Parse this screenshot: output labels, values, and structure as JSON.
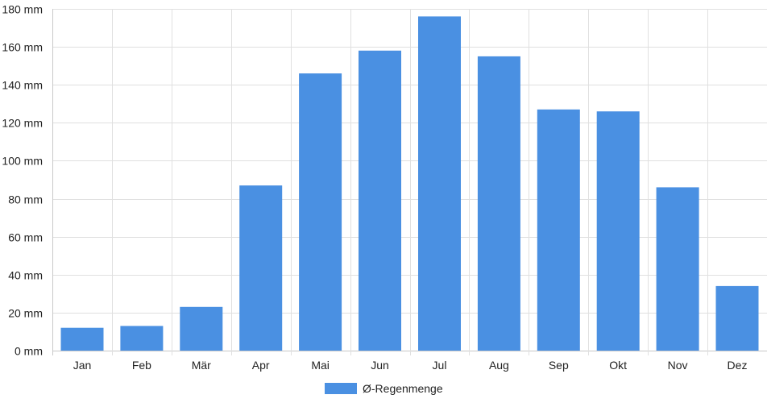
{
  "chart_data": {
    "type": "bar",
    "categories": [
      "Jan",
      "Feb",
      "Mär",
      "Apr",
      "Mai",
      "Jun",
      "Jul",
      "Aug",
      "Sep",
      "Okt",
      "Nov",
      "Dez"
    ],
    "series": [
      {
        "name": "Ø-Regenmenge",
        "values": [
          12,
          13,
          23,
          87,
          146,
          158,
          176,
          155,
          127,
          126,
          86,
          34
        ],
        "color": "#4a90e2"
      }
    ],
    "y_unit": "mm",
    "ylim": [
      0,
      180
    ],
    "yticks": [
      0,
      20,
      40,
      60,
      80,
      100,
      120,
      140,
      160,
      180
    ],
    "ytick_labels": [
      "0 mm",
      "20 mm",
      "40 mm",
      "60 mm",
      "80 mm",
      "100 mm",
      "120 mm",
      "140 mm",
      "160 mm",
      "180 mm"
    ],
    "grid": true,
    "grid_color": "#e0e0e0",
    "legend_position": "bottom-center"
  }
}
